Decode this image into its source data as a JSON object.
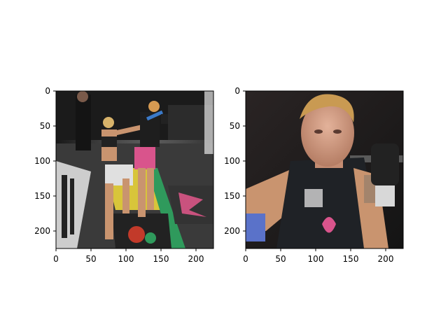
{
  "panels": [
    {
      "name": "left-panel",
      "x_ticks": [
        "0",
        "50",
        "100",
        "150",
        "200"
      ],
      "y_ticks": [
        "0",
        "50",
        "100",
        "150",
        "200"
      ],
      "x_range": [
        0,
        225
      ],
      "y_range": [
        0,
        225
      ],
      "content": "kickboxing-cage-scene",
      "colors": {
        "cage": "#2a2a2a",
        "mat_yellow": "#d8c53a",
        "mat_green": "#2f9a5c",
        "shorts_pink": "#d9548c",
        "skin": "#c9946f"
      }
    },
    {
      "name": "right-panel",
      "x_ticks": [
        "0",
        "50",
        "100",
        "150",
        "200"
      ],
      "y_ticks": [
        "0",
        "50",
        "100",
        "150",
        "200"
      ],
      "x_range": [
        0,
        225
      ],
      "y_range": [
        0,
        225
      ],
      "content": "fighter-closeup",
      "colors": {
        "background": "#1c1a1a",
        "hair": "#c99a52",
        "face": "#d6a286",
        "top": "#1f2226",
        "glove": "#222"
      }
    }
  ]
}
